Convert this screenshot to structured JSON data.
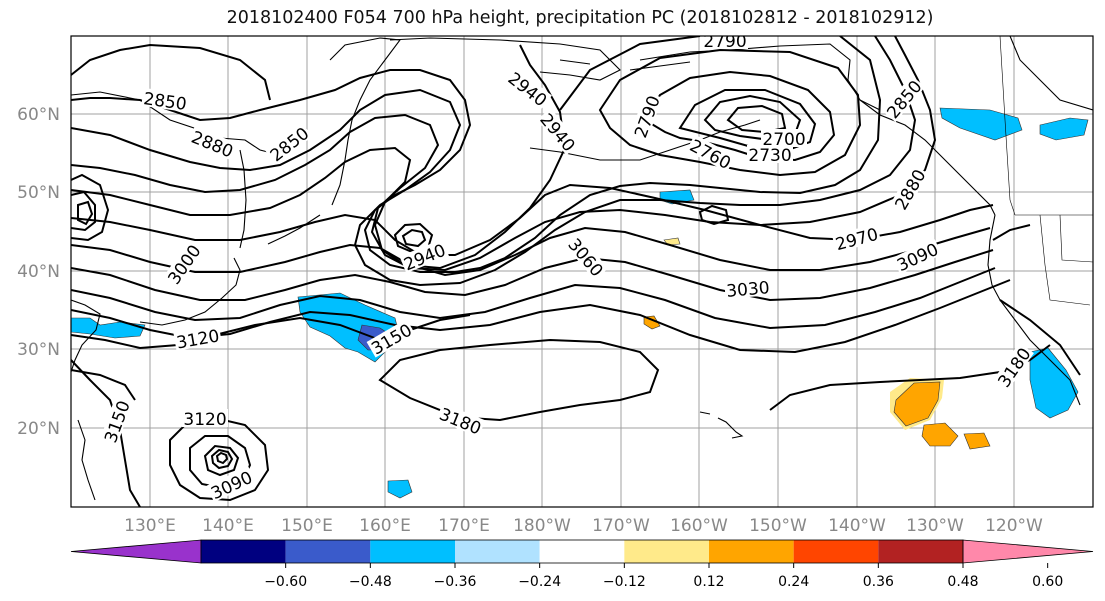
{
  "title": "2018102400 F054 700 hPa height, precipitation PC (2018102812 - 2018102912)",
  "lat_labels": [
    "60°N",
    "50°N",
    "40°N",
    "30°N",
    "20°N"
  ],
  "lon_labels": [
    "130°E",
    "140°E",
    "150°E",
    "160°E",
    "170°E",
    "180°W",
    "170°W",
    "160°W",
    "150°W",
    "140°W",
    "130°W",
    "120°W"
  ],
  "contour_labels": [
    "2850",
    "2880",
    "2850",
    "2940",
    "2940",
    "2790",
    "2790",
    "2760",
    "2700",
    "2730",
    "2850",
    "2880",
    "2940",
    "3060",
    "2970",
    "3090",
    "3030",
    "3000",
    "3120",
    "3150",
    "3180",
    "3180",
    "3120",
    "3150",
    "3090"
  ],
  "colorbar": {
    "colors": [
      "#9932CC",
      "#000080",
      "#3A5BCB",
      "#00BFFF",
      "#B0E2FF",
      "#FFFFFF",
      "#FFEA8A",
      "#FFA500",
      "#FF4500",
      "#B22222",
      "#FF88AA"
    ],
    "tick_labels": [
      "−0.60",
      "−0.48",
      "−0.36",
      "−0.24",
      "−0.12",
      "0.12",
      "0.24",
      "0.36",
      "0.48",
      "0.60"
    ]
  }
}
